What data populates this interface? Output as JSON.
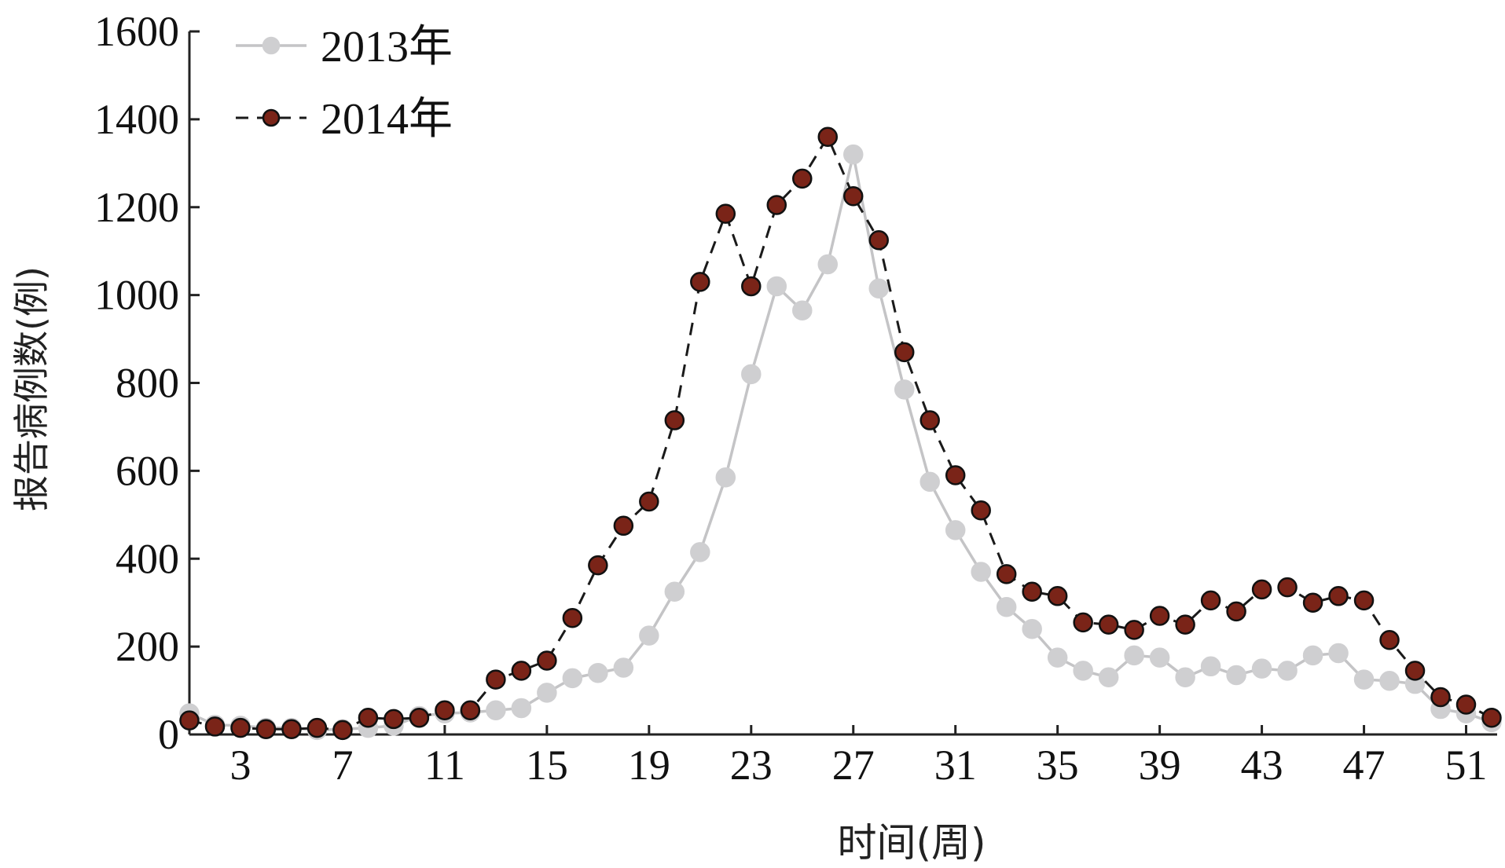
{
  "chart_data": {
    "type": "line",
    "xlabel": "时间(周)",
    "ylabel": "报告病例数(例)",
    "xlim": [
      1,
      52
    ],
    "ylim": [
      0,
      1600
    ],
    "xticks": [
      3,
      7,
      11,
      15,
      19,
      23,
      27,
      31,
      35,
      39,
      43,
      47,
      51
    ],
    "yticks": [
      0,
      200,
      400,
      600,
      800,
      1000,
      1200,
      1400,
      1600
    ],
    "grid": false,
    "legend_position": "top-left",
    "x": [
      1,
      2,
      3,
      4,
      5,
      6,
      7,
      8,
      9,
      10,
      11,
      12,
      13,
      14,
      15,
      16,
      17,
      18,
      19,
      20,
      21,
      22,
      23,
      24,
      25,
      26,
      27,
      28,
      29,
      30,
      31,
      32,
      33,
      34,
      35,
      36,
      37,
      38,
      39,
      40,
      41,
      42,
      43,
      44,
      45,
      46,
      47,
      48,
      49,
      50,
      51,
      52
    ],
    "series": [
      {
        "name": "2013年",
        "color": "#c4c4c6",
        "line_style": "solid",
        "values": [
          48,
          22,
          20,
          15,
          15,
          10,
          12,
          15,
          20,
          42,
          48,
          50,
          55,
          60,
          95,
          128,
          140,
          152,
          225,
          325,
          415,
          585,
          820,
          1020,
          965,
          1070,
          1320,
          1015,
          785,
          575,
          465,
          370,
          290,
          240,
          175,
          145,
          130,
          180,
          175,
          130,
          155,
          135,
          150,
          145,
          180,
          185,
          125,
          122,
          115,
          58,
          48,
          28
        ]
      },
      {
        "name": "2014年",
        "color": "#7a2418",
        "line_style": "dashed",
        "values": [
          32,
          18,
          15,
          12,
          12,
          15,
          10,
          38,
          35,
          38,
          55,
          55,
          125,
          145,
          168,
          265,
          385,
          475,
          530,
          715,
          1030,
          1185,
          1020,
          1205,
          1265,
          1360,
          1225,
          1125,
          870,
          715,
          590,
          510,
          365,
          325,
          315,
          255,
          250,
          238,
          270,
          250,
          305,
          280,
          330,
          335,
          300,
          315,
          305,
          215,
          145,
          85,
          68,
          38
        ]
      }
    ]
  }
}
